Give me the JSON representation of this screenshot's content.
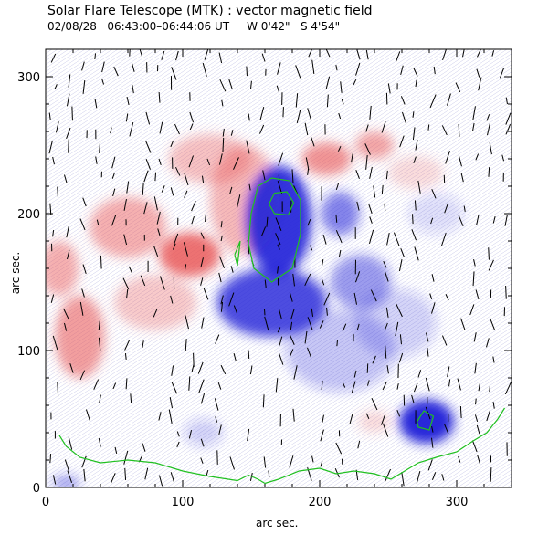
{
  "chart_data": {
    "type": "heatmap",
    "title": "Solar Flare Telescope (MTK) : vector magnetic field",
    "subtitle": "02/08/28   06:43:00–06:44:06 UT     W 0'42\"   S 4'54\"",
    "xlabel": "arc sec.",
    "ylabel": "arc sec.",
    "xlim": [
      0,
      340
    ],
    "ylim": [
      0,
      320
    ],
    "x_ticks": [
      0,
      100,
      200,
      300
    ],
    "y_ticks": [
      0,
      100,
      200,
      300
    ],
    "grid": false,
    "colors": {
      "positive": "#e85050",
      "negative": "#2020d8",
      "contour": "#20c020",
      "vector": "#000000",
      "background_hatch": "#c8c8e8"
    },
    "positive_regions": [
      {
        "x": 105,
        "y": 170,
        "rx": 22,
        "ry": 16,
        "strength": 0.8
      },
      {
        "x": 60,
        "y": 190,
        "rx": 28,
        "ry": 22,
        "strength": 0.45
      },
      {
        "x": 120,
        "y": 240,
        "rx": 30,
        "ry": 18,
        "strength": 0.35
      },
      {
        "x": 145,
        "y": 210,
        "rx": 25,
        "ry": 40,
        "strength": 0.4
      },
      {
        "x": 25,
        "y": 110,
        "rx": 18,
        "ry": 30,
        "strength": 0.55
      },
      {
        "x": 10,
        "y": 160,
        "rx": 14,
        "ry": 20,
        "strength": 0.45
      },
      {
        "x": 80,
        "y": 135,
        "rx": 30,
        "ry": 20,
        "strength": 0.3
      },
      {
        "x": 205,
        "y": 240,
        "rx": 18,
        "ry": 12,
        "strength": 0.6
      },
      {
        "x": 240,
        "y": 250,
        "rx": 14,
        "ry": 10,
        "strength": 0.5
      },
      {
        "x": 270,
        "y": 230,
        "rx": 20,
        "ry": 12,
        "strength": 0.2
      },
      {
        "x": 240,
        "y": 48,
        "rx": 12,
        "ry": 8,
        "strength": 0.2
      }
    ],
    "negative_regions": [
      {
        "x": 170,
        "y": 195,
        "rx": 24,
        "ry": 40,
        "strength": 0.9
      },
      {
        "x": 165,
        "y": 135,
        "rx": 40,
        "ry": 25,
        "strength": 0.8
      },
      {
        "x": 215,
        "y": 200,
        "rx": 14,
        "ry": 16,
        "strength": 0.55
      },
      {
        "x": 230,
        "y": 150,
        "rx": 22,
        "ry": 20,
        "strength": 0.45
      },
      {
        "x": 278,
        "y": 48,
        "rx": 20,
        "ry": 16,
        "strength": 0.95
      },
      {
        "x": 215,
        "y": 100,
        "rx": 40,
        "ry": 30,
        "strength": 0.25
      },
      {
        "x": 255,
        "y": 120,
        "rx": 30,
        "ry": 25,
        "strength": 0.2
      },
      {
        "x": 15,
        "y": 3,
        "rx": 10,
        "ry": 6,
        "strength": 0.4
      },
      {
        "x": 115,
        "y": 40,
        "rx": 14,
        "ry": 10,
        "strength": 0.2
      },
      {
        "x": 285,
        "y": 200,
        "rx": 20,
        "ry": 15,
        "strength": 0.15
      }
    ],
    "contours": [
      {
        "name": "umbra-outline",
        "points": [
          [
            148,
            178
          ],
          [
            150,
            200
          ],
          [
            155,
            220
          ],
          [
            165,
            226
          ],
          [
            178,
            224
          ],
          [
            186,
            210
          ],
          [
            186,
            185
          ],
          [
            180,
            160
          ],
          [
            165,
            150
          ],
          [
            152,
            160
          ],
          [
            148,
            178
          ]
        ]
      },
      {
        "name": "inner-core",
        "points": [
          [
            163,
            207
          ],
          [
            167,
            215
          ],
          [
            176,
            216
          ],
          [
            181,
            208
          ],
          [
            177,
            199
          ],
          [
            167,
            200
          ],
          [
            163,
            207
          ]
        ]
      },
      {
        "name": "spot-ring",
        "points": [
          [
            138,
            170
          ],
          [
            142,
            180
          ],
          [
            140,
            162
          ],
          [
            138,
            170
          ]
        ]
      },
      {
        "name": "small-spot",
        "points": [
          [
            271,
            48
          ],
          [
            276,
            56
          ],
          [
            283,
            52
          ],
          [
            280,
            42
          ],
          [
            272,
            44
          ],
          [
            271,
            48
          ]
        ]
      },
      {
        "name": "limb-line",
        "points": [
          [
            10,
            38
          ],
          [
            15,
            30
          ],
          [
            25,
            22
          ],
          [
            40,
            18
          ],
          [
            60,
            20
          ],
          [
            80,
            18
          ],
          [
            100,
            12
          ],
          [
            120,
            8
          ],
          [
            140,
            5
          ],
          [
            148,
            9
          ],
          [
            155,
            6
          ],
          [
            160,
            3
          ],
          [
            170,
            6
          ],
          [
            185,
            12
          ],
          [
            200,
            14
          ],
          [
            212,
            10
          ],
          [
            225,
            12
          ],
          [
            240,
            10
          ],
          [
            252,
            6
          ],
          [
            262,
            12
          ],
          [
            272,
            18
          ],
          [
            285,
            22
          ],
          [
            300,
            26
          ],
          [
            312,
            34
          ],
          [
            322,
            40
          ],
          [
            330,
            50
          ],
          [
            335,
            58
          ]
        ]
      }
    ]
  }
}
